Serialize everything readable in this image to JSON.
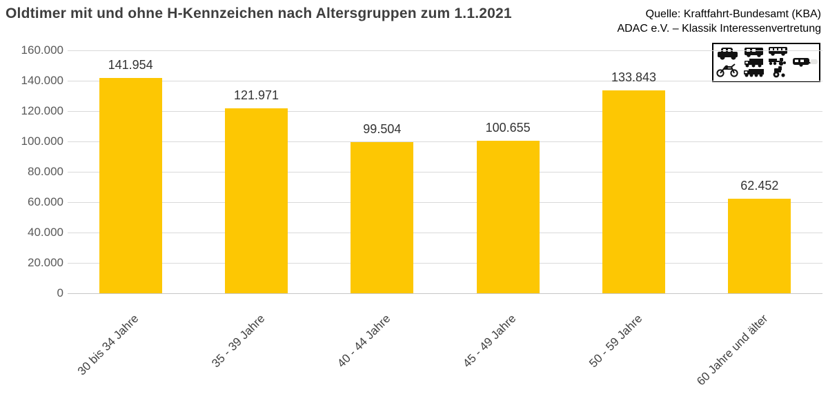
{
  "title": "Oldtimer mit und ohne H-Kennzeichen nach Altersgruppen zum 1.1.2021",
  "source": {
    "line1": "Quelle: Kraftfahrt-Bundesamt (KBA)",
    "line2": "ADAC e.V. – Klassik Interessenvertretung"
  },
  "icons_legend": [
    "car-icon",
    "motorcycle-icon",
    "van-icon",
    "truck-icon",
    "semi-truck-icon",
    "bus-icon",
    "tractor-trailer-icon",
    "tractor-icon",
    "caravan-trailer-icon",
    "ghost-trailer-icon"
  ],
  "colors": {
    "bar": "#fdc703",
    "gridline": "#d9d9d9",
    "axis_text": "#595959",
    "value_text": "#333333",
    "title_text": "#3f3f3f",
    "source_text": "#000000"
  },
  "chart_data": {
    "type": "bar",
    "title": "Oldtimer mit und ohne H-Kennzeichen nach Altersgruppen zum 1.1.2021",
    "categories": [
      "30 bis 34 Jahre",
      "35 - 39 Jahre",
      "40 - 44 Jahre",
      "45 - 49 Jahre",
      "50 - 59 Jahre",
      "60 Jahre und älter"
    ],
    "values": [
      141954,
      121971,
      99504,
      100655,
      133843,
      62452
    ],
    "value_labels": [
      "141.954",
      "121.971",
      "99.504",
      "100.655",
      "133.843",
      "62.452"
    ],
    "xlabel": "",
    "ylabel": "",
    "ylim": [
      0,
      160000
    ],
    "y_step": 20000,
    "y_tick_labels": [
      "0",
      "20.000",
      "40.000",
      "60.000",
      "80.000",
      "100.000",
      "120.000",
      "140.000",
      "160.000"
    ],
    "grid": true,
    "legend_position": "none",
    "bar_color": "#fdc703"
  }
}
